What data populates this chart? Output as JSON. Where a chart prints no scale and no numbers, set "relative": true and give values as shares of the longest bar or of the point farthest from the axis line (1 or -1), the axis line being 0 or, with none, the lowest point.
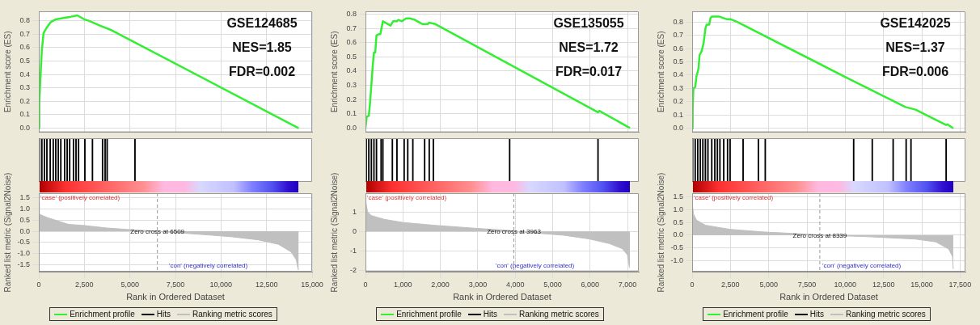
{
  "chart_data": [
    {
      "type": "line",
      "title": "GSE124685",
      "annotations": [
        "NES=1.85",
        "FDR=0.002"
      ],
      "ylabel": "Enrichment score (ES)",
      "xlim": [
        0,
        15000
      ],
      "xticks": [
        0,
        2500,
        5000,
        7500,
        10000,
        12500,
        15000
      ],
      "ylim": [
        -0.03,
        0.87
      ],
      "yticks": [
        {
          "value": 0,
          "label": "0.0"
        },
        0.1,
        0.2,
        0.3,
        0.4,
        0.5,
        0.6,
        0.7,
        0.8
      ],
      "grid": true,
      "tick_labels": "y",
      "legend": "bottom",
      "series": [
        {
          "name": "Enrichment profile",
          "color": "#33ee33",
          "x": [
            0,
            28,
            97,
            167,
            264,
            444,
            653,
            931,
            1347,
            1764,
            2111,
            2500,
            2736,
            3431,
            3986,
            14264
          ],
          "values": [
            0,
            0.19,
            0.4,
            0.58,
            0.71,
            0.75,
            0.79,
            0.81,
            0.82,
            0.83,
            0.84,
            0.81,
            0.8,
            0.76,
            0.73,
            0
          ]
        }
      ]
    },
    {
      "type": "bar",
      "relative": true,
      "xlim": [
        0,
        15000
      ],
      "tick_labels": false,
      "legend": "bottom",
      "series": [
        {
          "name": "Hits",
          "color": "#000000",
          "x": [
            28,
            167,
            306,
            444,
            625,
            792,
            931,
            1069,
            1208,
            1417,
            1556,
            1694,
            1903,
            2042,
            2181,
            2528,
            2944,
            3500,
            3639,
            3750,
            5278
          ],
          "values": [
            1,
            1,
            1,
            1,
            1,
            1,
            1,
            1,
            1,
            1,
            1,
            1,
            1,
            1,
            1,
            1,
            1,
            1,
            1,
            1,
            1
          ]
        }
      ]
    },
    {
      "type": "area",
      "annotations": [
        "'case' (positively correlated)",
        "'con' (negatively correlated)"
      ],
      "xlabel": "Rank in Ordered Dataset",
      "ylabel": "Ranked list metric (Signal2Noise)",
      "xlim": [
        0,
        15000
      ],
      "xticks": [
        0,
        {
          "value": 2500,
          "label": "2,500"
        },
        {
          "value": 5000,
          "label": "5,000"
        },
        {
          "value": 7500,
          "label": "7,500"
        },
        {
          "value": 10000,
          "label": "10,000"
        },
        {
          "value": 12500,
          "label": "12,500"
        },
        {
          "value": 15000,
          "label": "15,000"
        }
      ],
      "ylim": [
        -1.8,
        1.7
      ],
      "yticks": [
        -1.5,
        {
          "value": -1,
          "label": "-1.0"
        },
        -0.5,
        {
          "value": 0,
          "label": "0.0"
        },
        0.5,
        {
          "value": 1,
          "label": "1.0"
        },
        1.5
      ],
      "grid": true,
      "legend": "bottom",
      "ref_lines": [
        {
          "axis": "x",
          "value": 6509,
          "label": "Zero cross at 6509",
          "line_style": "dashed"
        }
      ],
      "series": [
        {
          "name": "Ranking metric scores",
          "color": "#c0c0c0",
          "x": [
            0,
            28,
            514,
            1625,
            2500,
            3708,
            5097,
            6509,
            7875,
            9264,
            10653,
            12042,
            13153,
            13847,
            14125,
            14236,
            14264
          ],
          "values": [
            1.33,
            0.76,
            0.6,
            0.31,
            0.26,
            0.15,
            0.07,
            0,
            -0.08,
            -0.16,
            -0.25,
            -0.38,
            -0.58,
            -0.92,
            -1.26,
            -1.71,
            -1.71
          ]
        }
      ]
    },
    {
      "type": "line",
      "title": "GSE135055",
      "annotations": [
        "NES=1.72",
        "FDR=0.017"
      ],
      "ylabel": "Enrichment score (ES)",
      "xlim": [
        0,
        7300
      ],
      "xticks": [
        0,
        1000,
        2000,
        3000,
        4000,
        5000,
        6000,
        7000
      ],
      "ylim": [
        -0.03,
        0.82
      ],
      "yticks": [
        {
          "value": 0,
          "label": "0.0"
        },
        0.1,
        0.2,
        0.3,
        0.4,
        0.5,
        0.6,
        0.7,
        0.8
      ],
      "grid": true,
      "tick_labels": "y",
      "legend": "bottom",
      "series": [
        {
          "name": "Enrichment profile",
          "color": "#33ee33",
          "x": [
            0,
            34,
            89,
            123,
            157,
            192,
            226,
            260,
            294,
            362,
            397,
            465,
            670,
            739,
            841,
            876,
            978,
            1081,
            1183,
            1320,
            1525,
            1662,
            1696,
            1867,
            6211,
            6245,
            7066
          ],
          "values": [
            0,
            0.08,
            0.085,
            0.18,
            0.3,
            0.43,
            0.53,
            0.53,
            0.65,
            0.66,
            0.66,
            0.75,
            0.72,
            0.75,
            0.75,
            0.76,
            0.75,
            0.77,
            0.77,
            0.76,
            0.73,
            0.73,
            0.74,
            0.73,
            0.11,
            0.12,
            0
          ]
        }
      ]
    },
    {
      "type": "bar",
      "relative": true,
      "xlim": [
        0,
        7300
      ],
      "tick_labels": false,
      "legend": "bottom",
      "series": [
        {
          "name": "Hits",
          "color": "#000000",
          "x": [
            21,
            89,
            157,
            226,
            294,
            417,
            465,
            718,
            841,
            1033,
            1129,
            1265,
            1580,
            1703,
            1813,
            3851,
            6211
          ],
          "values": [
            1,
            1,
            1,
            1,
            1,
            1,
            1,
            1,
            1,
            1,
            1,
            1,
            1,
            1,
            1,
            1,
            1
          ]
        }
      ]
    },
    {
      "type": "area",
      "annotations": [
        "'case' (positively correlated)",
        "'con' (negatively correlated)"
      ],
      "xlabel": "Rank in Ordered Dataset",
      "ylabel": "Ranked list metric (Signal2Noise)",
      "xlim": [
        0,
        7300
      ],
      "xticks": [
        0,
        {
          "value": 1000,
          "label": "1,000"
        },
        {
          "value": 2000,
          "label": "2,000"
        },
        {
          "value": 3000,
          "label": "3,000"
        },
        {
          "value": 4000,
          "label": "4,000"
        },
        {
          "value": 5000,
          "label": "5,000"
        },
        {
          "value": 6000,
          "label": "6,000"
        },
        {
          "value": 7000,
          "label": "7,000"
        }
      ],
      "ylim": [
        -2.05,
        1.95
      ],
      "yticks": [
        -2,
        -1,
        0,
        1
      ],
      "grid": true,
      "legend": "bottom",
      "ref_lines": [
        {
          "axis": "x",
          "value": 3963,
          "label": "Zero cross at 3963",
          "line_style": "dashed"
        }
      ],
      "series": [
        {
          "name": "Ranking metric scores",
          "color": "#c0c0c0",
          "x": [
            0,
            55,
            157,
            499,
            992,
            1867,
            2962,
            3919,
            3963,
            4603,
            5287,
            5971,
            6518,
            6860,
            6997,
            7052,
            7066
          ],
          "values": [
            1.62,
            1,
            0.81,
            0.62,
            0.46,
            0.31,
            0.16,
            0.04,
            0,
            -0.09,
            -0.19,
            -0.38,
            -0.62,
            -0.88,
            -1.19,
            -1.84,
            -1.84
          ]
        }
      ]
    },
    {
      "type": "line",
      "title": "GSE142025",
      "annotations": [
        "NES=1.37",
        "FDR=0.006"
      ],
      "ylabel": "Enrichment score (ES)",
      "xlim": [
        0,
        17850
      ],
      "xticks": [
        0,
        2500,
        5000,
        7500,
        10000,
        12500,
        15000,
        17500
      ],
      "ylim": [
        -0.03,
        0.88
      ],
      "yticks": [
        {
          "value": 0,
          "label": "0.0"
        },
        0.1,
        0.2,
        0.3,
        0.4,
        0.5,
        0.6,
        0.7,
        0.8
      ],
      "grid": true,
      "tick_labels": "y",
      "legend": "bottom",
      "series": [
        {
          "name": "Enrichment profile",
          "color": "#33ee33",
          "x": [
            0,
            33,
            83,
            200,
            283,
            416,
            483,
            616,
            749,
            865,
            948,
            1115,
            1198,
            1281,
            1780,
            2280,
            2529,
            2945,
            9933,
            13927,
            14592,
            16589,
            16672,
            17055
          ],
          "values": [
            0,
            0.14,
            0.3,
            0.31,
            0.39,
            0.45,
            0.55,
            0.58,
            0.64,
            0.75,
            0.78,
            0.78,
            0.83,
            0.84,
            0.84,
            0.82,
            0.82,
            0.8,
            0.39,
            0.16,
            0.14,
            0.025,
            0.03,
            0
          ]
        }
      ]
    },
    {
      "type": "bar",
      "relative": true,
      "xlim": [
        0,
        17850
      ],
      "tick_labels": false,
      "legend": "bottom",
      "series": [
        {
          "name": "Hits",
          "color": "#000000",
          "x": [
            33,
            200,
            366,
            532,
            699,
            865,
            1032,
            1281,
            1481,
            1647,
            1814,
            2063,
            2313,
            2479,
            3328,
            4326,
            4775,
            10549,
            11764,
            13128,
            13977,
            14293,
            16589
          ],
          "values": [
            1,
            1,
            1,
            1,
            1,
            1,
            1,
            1,
            1,
            1,
            1,
            1,
            1,
            1,
            1,
            1,
            1,
            1,
            1,
            1,
            1,
            1,
            1
          ]
        }
      ]
    },
    {
      "type": "area",
      "annotations": [
        "'case' (positively correlated)",
        "'con' (negatively correlated)"
      ],
      "xlabel": "Rank in Ordered Dataset",
      "ylabel": "Ranked list metric (Signal2Noise)",
      "xlim": [
        0,
        17850
      ],
      "xticks": [
        0,
        {
          "value": 2500,
          "label": "2,500"
        },
        {
          "value": 5000,
          "label": "5,000"
        },
        {
          "value": 7500,
          "label": "7,500"
        },
        {
          "value": 10000,
          "label": "10,000"
        },
        {
          "value": 12500,
          "label": "12,500"
        },
        {
          "value": 15000,
          "label": "15,000"
        },
        {
          "value": 17500,
          "label": "17,500"
        }
      ],
      "ylim": [
        -1.42,
        1.64
      ],
      "yticks": [
        {
          "value": -1,
          "label": "-1.0"
        },
        -0.5,
        {
          "value": 0,
          "label": "0.0"
        },
        0.5,
        {
          "value": 1,
          "label": "1.0"
        },
        1.5
      ],
      "grid": true,
      "legend": "bottom",
      "ref_lines": [
        {
          "axis": "x",
          "value": 8339,
          "label": "Zero cross at 8339",
          "line_style": "dashed"
        }
      ],
      "series": [
        {
          "name": "Ranking metric scores",
          "color": "#c0c0c0",
          "x": [
            0,
            83,
            283,
            865,
            2479,
            4609,
            7937,
            8339,
            11265,
            14592,
            15923,
            16755,
            17005,
            17055
          ],
          "values": [
            1.32,
            0.83,
            0.59,
            0.39,
            0.23,
            0.13,
            0.03,
            0,
            -0.05,
            -0.15,
            -0.26,
            -0.54,
            -0.83,
            -1.32
          ]
        }
      ]
    }
  ]
}
